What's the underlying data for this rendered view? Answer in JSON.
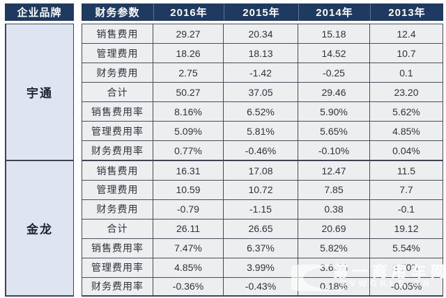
{
  "table": {
    "header": {
      "brand": "企业品牌",
      "param": "财务参数",
      "years": [
        "2016年",
        "2015年",
        "2014年",
        "2013年"
      ]
    },
    "sections": [
      {
        "brand": "宇通",
        "rows": [
          {
            "param": "销售费用",
            "values": [
              "29.27",
              "20.34",
              "15.18",
              "12.4"
            ]
          },
          {
            "param": "管理费用",
            "values": [
              "18.26",
              "18.13",
              "14.52",
              "10.7"
            ]
          },
          {
            "param": "财务费用",
            "values": [
              "2.75",
              "-1.42",
              "-0.25",
              "0.1"
            ]
          },
          {
            "param": "合计",
            "values": [
              "50.27",
              "37.05",
              "29.46",
              "23.20"
            ]
          },
          {
            "param": "销售费用率",
            "values": [
              "8.16%",
              "6.52%",
              "5.90%",
              "5.62%"
            ]
          },
          {
            "param": "管理费用率",
            "values": [
              "5.09%",
              "5.81%",
              "5.65%",
              "4.85%"
            ]
          },
          {
            "param": "财务费用率",
            "values": [
              "0.77%",
              "-0.46%",
              "-0.10%",
              "0.04%"
            ]
          }
        ]
      },
      {
        "brand": "金龙",
        "rows": [
          {
            "param": "销售费用",
            "values": [
              "16.31",
              "17.08",
              "12.47",
              "11.5"
            ]
          },
          {
            "param": "管理费用",
            "values": [
              "10.59",
              "10.72",
              "7.85",
              "7.7"
            ]
          },
          {
            "param": "财务费用",
            "values": [
              "-0.79",
              "-1.15",
              "0.38",
              "-0.1"
            ]
          },
          {
            "param": "合计",
            "values": [
              "26.11",
              "26.65",
              "20.69",
              "19.12"
            ]
          },
          {
            "param": "销售费用率",
            "values": [
              "7.47%",
              "6.37%",
              "5.82%",
              "5.54%"
            ]
          },
          {
            "param": "管理费用率",
            "values": [
              "4.85%",
              "3.99%",
              "3.66%",
              "3.70%"
            ]
          },
          {
            "param": "财务费用率",
            "values": [
              "-0.36%",
              "-0.43%",
              "0.18%",
              "-0.05%"
            ]
          }
        ]
      }
    ]
  },
  "watermark": {
    "site_name": "第一商用车网",
    "site_url": "CVWORLD.CN"
  },
  "colors": {
    "header_bg": "#1f3a60",
    "header_text": "#ffffff",
    "cell_bg": "#edeef0",
    "brand_cell_bg": "#dfe5f0",
    "grid_line": "#3d4350",
    "body_text": "#2e323a"
  },
  "chart_data": {
    "type": "table",
    "title": "",
    "columns": [
      "企业品牌",
      "财务参数",
      "2016年",
      "2015年",
      "2014年",
      "2013年"
    ],
    "rows": [
      [
        "宇通",
        "销售费用",
        "29.27",
        "20.34",
        "15.18",
        "12.4"
      ],
      [
        "宇通",
        "管理费用",
        "18.26",
        "18.13",
        "14.52",
        "10.7"
      ],
      [
        "宇通",
        "财务费用",
        "2.75",
        "-1.42",
        "-0.25",
        "0.1"
      ],
      [
        "宇通",
        "合计",
        "50.27",
        "37.05",
        "29.46",
        "23.20"
      ],
      [
        "宇通",
        "销售费用率",
        "8.16%",
        "6.52%",
        "5.90%",
        "5.62%"
      ],
      [
        "宇通",
        "管理费用率",
        "5.09%",
        "5.81%",
        "5.65%",
        "4.85%"
      ],
      [
        "宇通",
        "财务费用率",
        "0.77%",
        "-0.46%",
        "-0.10%",
        "0.04%"
      ],
      [
        "金龙",
        "销售费用",
        "16.31",
        "17.08",
        "12.47",
        "11.5"
      ],
      [
        "金龙",
        "管理费用",
        "10.59",
        "10.72",
        "7.85",
        "7.7"
      ],
      [
        "金龙",
        "财务费用",
        "-0.79",
        "-1.15",
        "0.38",
        "-0.1"
      ],
      [
        "金龙",
        "合计",
        "26.11",
        "26.65",
        "20.69",
        "19.12"
      ],
      [
        "金龙",
        "销售费用率",
        "7.47%",
        "6.37%",
        "5.82%",
        "5.54%"
      ],
      [
        "金龙",
        "管理费用率",
        "4.85%",
        "3.99%",
        "3.66%",
        "3.70%"
      ],
      [
        "金龙",
        "财务费用率",
        "-0.36%",
        "-0.43%",
        "0.18%",
        "-0.05%"
      ]
    ]
  }
}
